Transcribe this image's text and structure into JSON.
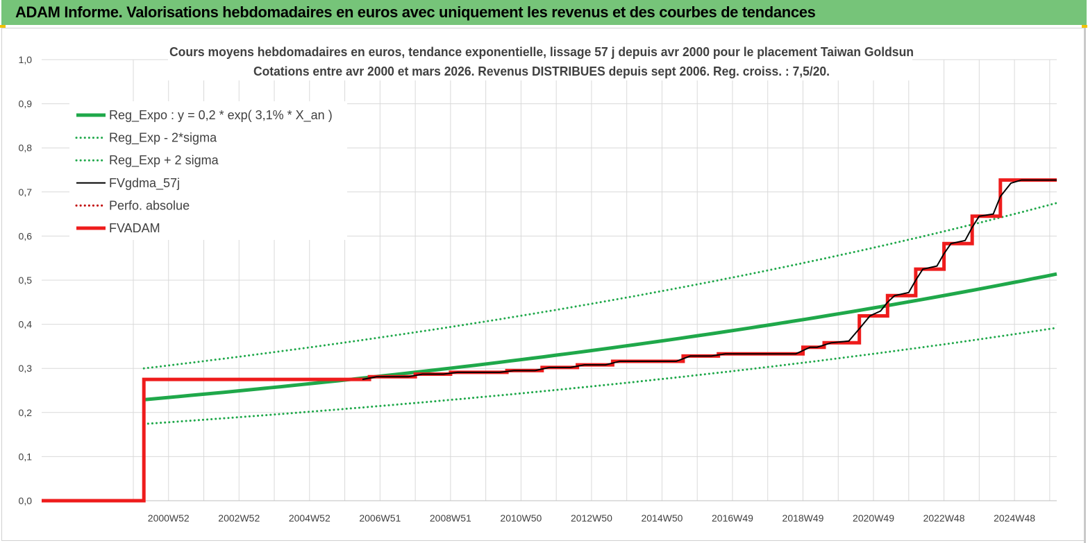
{
  "header": {
    "title": "ADAM Informe. Valorisations hebdomadaires en euros avec uniquement les revenus et des courbes de tendances"
  },
  "colors": {
    "header_bg": "#76c479",
    "reg_green": "#1fa84a",
    "fvgdma_black": "#000000",
    "fvadam_red": "#ee1c1c",
    "perfo_red": "#c00000",
    "grid": "#d9d9d9"
  },
  "chart_data": {
    "type": "line",
    "title": "Cours moyens hebdomadaires en euros, tendance exponentielle, lissage 57 j depuis avr 2000 pour le placement Taiwan Goldsun",
    "subtitle": "Cotations entre avr 2000 et mars 2026. Revenus DISTRIBUES depuis sept 2006. Reg. croiss. : 7,5/20.",
    "xlabel": "",
    "ylabel": "",
    "x_range": [
      1997.4,
      2026.2
    ],
    "ylim": [
      0,
      1.0
    ],
    "y_ticks": [
      "0,0",
      "0,1",
      "0,2",
      "0,3",
      "0,4",
      "0,5",
      "0,6",
      "0,7",
      "0,8",
      "0,9",
      "1,0"
    ],
    "y_tick_values": [
      0,
      0.1,
      0.2,
      0.3,
      0.4,
      0.5,
      0.6,
      0.7,
      0.8,
      0.9,
      1.0
    ],
    "x_ticks": [
      {
        "label": "2000W52",
        "x": 2001.0
      },
      {
        "label": "2002W52",
        "x": 2003.0
      },
      {
        "label": "2004W52",
        "x": 2005.0
      },
      {
        "label": "2006W51",
        "x": 2007.0
      },
      {
        "label": "2008W51",
        "x": 2009.0
      },
      {
        "label": "2010W50",
        "x": 2011.0
      },
      {
        "label": "2012W50",
        "x": 2013.0
      },
      {
        "label": "2014W50",
        "x": 2015.0
      },
      {
        "label": "2016W49",
        "x": 2017.0
      },
      {
        "label": "2018W49",
        "x": 2019.0
      },
      {
        "label": "2020W49",
        "x": 2021.0
      },
      {
        "label": "2022W48",
        "x": 2023.0
      },
      {
        "label": "2024W48",
        "x": 2025.0
      }
    ],
    "grid": true,
    "legend_position": "top-left",
    "legend": [
      {
        "name": "Reg_Expo : y = 0,2 * exp( 3,1% *  X_an )",
        "style": "solid-thick",
        "color": "#1fa84a"
      },
      {
        "name": "Reg_Exp - 2*sigma",
        "style": "dotted",
        "color": "#1fa84a"
      },
      {
        "name": "Reg_Exp + 2 sigma",
        "style": "dotted",
        "color": "#1fa84a"
      },
      {
        "name": "FVgdma_57j",
        "style": "solid",
        "color": "#000000"
      },
      {
        "name": "Perfo. absolue",
        "style": "dotted",
        "color": "#c00000"
      },
      {
        "name": "FVADAM",
        "style": "solid-thick",
        "color": "#ee1c1c"
      }
    ],
    "series": [
      {
        "name": "Reg_Expo : y = 0,2 * exp( 3,1% *  X_an )",
        "start_x": 2000.3,
        "end_x": 2026.2,
        "start_y": 0.229,
        "end_y": 0.514
      },
      {
        "name": "Reg_Exp - 2*sigma",
        "start_x": 2000.3,
        "end_x": 2026.2,
        "start_y": 0.174,
        "end_y": 0.392
      },
      {
        "name": "Reg_Exp + 2 sigma",
        "start_x": 2000.3,
        "end_x": 2026.2,
        "start_y": 0.3,
        "end_y": 0.675
      },
      {
        "name": "FVADAM",
        "points": [
          [
            1997.4,
            0.0
          ],
          [
            2000.3,
            0.0
          ],
          [
            2000.3,
            0.275
          ],
          [
            2006.7,
            0.275
          ],
          [
            2006.7,
            0.281
          ],
          [
            2008.0,
            0.281
          ],
          [
            2008.0,
            0.287
          ],
          [
            2009.0,
            0.287
          ],
          [
            2009.0,
            0.291
          ],
          [
            2010.6,
            0.291
          ],
          [
            2010.6,
            0.295
          ],
          [
            2011.6,
            0.295
          ],
          [
            2011.6,
            0.302
          ],
          [
            2012.6,
            0.302
          ],
          [
            2012.6,
            0.308
          ],
          [
            2013.6,
            0.308
          ],
          [
            2013.6,
            0.316
          ],
          [
            2015.6,
            0.316
          ],
          [
            2015.6,
            0.328
          ],
          [
            2016.6,
            0.328
          ],
          [
            2016.6,
            0.333
          ],
          [
            2019.0,
            0.333
          ],
          [
            2019.0,
            0.348
          ],
          [
            2019.6,
            0.348
          ],
          [
            2019.6,
            0.358
          ],
          [
            2020.6,
            0.358
          ],
          [
            2020.6,
            0.419
          ],
          [
            2021.4,
            0.419
          ],
          [
            2021.4,
            0.465
          ],
          [
            2022.2,
            0.465
          ],
          [
            2022.2,
            0.525
          ],
          [
            2023.0,
            0.525
          ],
          [
            2023.0,
            0.583
          ],
          [
            2023.8,
            0.583
          ],
          [
            2023.8,
            0.645
          ],
          [
            2024.6,
            0.645
          ],
          [
            2024.6,
            0.727
          ],
          [
            2026.2,
            0.727
          ]
        ]
      },
      {
        "name": "FVgdma_57j",
        "points": [
          [
            2006.5,
            0.275
          ],
          [
            2006.9,
            0.281
          ],
          [
            2007.8,
            0.281
          ],
          [
            2008.2,
            0.287
          ],
          [
            2008.8,
            0.287
          ],
          [
            2009.2,
            0.291
          ],
          [
            2010.4,
            0.291
          ],
          [
            2010.8,
            0.295
          ],
          [
            2011.4,
            0.295
          ],
          [
            2011.8,
            0.302
          ],
          [
            2012.4,
            0.302
          ],
          [
            2012.8,
            0.308
          ],
          [
            2013.4,
            0.308
          ],
          [
            2013.8,
            0.316
          ],
          [
            2015.4,
            0.316
          ],
          [
            2015.8,
            0.328
          ],
          [
            2016.4,
            0.328
          ],
          [
            2016.8,
            0.333
          ],
          [
            2018.8,
            0.333
          ],
          [
            2019.2,
            0.348
          ],
          [
            2019.4,
            0.348
          ],
          [
            2019.8,
            0.358
          ],
          [
            2020.3,
            0.362
          ],
          [
            2020.6,
            0.39
          ],
          [
            2020.9,
            0.419
          ],
          [
            2021.2,
            0.43
          ],
          [
            2021.4,
            0.45
          ],
          [
            2021.6,
            0.465
          ],
          [
            2022.0,
            0.472
          ],
          [
            2022.2,
            0.5
          ],
          [
            2022.4,
            0.525
          ],
          [
            2022.8,
            0.532
          ],
          [
            2023.0,
            0.56
          ],
          [
            2023.2,
            0.583
          ],
          [
            2023.6,
            0.59
          ],
          [
            2023.8,
            0.62
          ],
          [
            2024.0,
            0.645
          ],
          [
            2024.4,
            0.65
          ],
          [
            2024.6,
            0.69
          ],
          [
            2024.9,
            0.72
          ],
          [
            2025.2,
            0.727
          ],
          [
            2026.2,
            0.727
          ]
        ]
      }
    ]
  }
}
